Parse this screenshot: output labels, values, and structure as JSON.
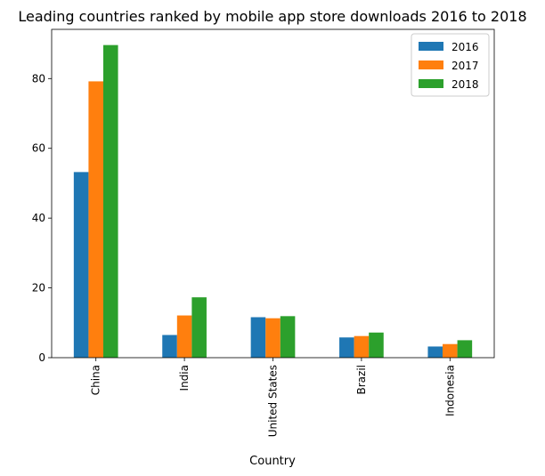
{
  "chart_data": {
    "type": "bar",
    "title": "Leading countries ranked by mobile app store downloads 2016 to 2018",
    "xlabel": "Country",
    "ylabel": "",
    "categories": [
      "China",
      "India",
      "United States",
      "Brazil",
      "Indonesia"
    ],
    "series": [
      {
        "name": "2016",
        "color": "#1f77b4",
        "values": [
          53.2,
          6.5,
          11.6,
          5.8,
          3.2
        ]
      },
      {
        "name": "2017",
        "color": "#ff7f0e",
        "values": [
          79.2,
          12.1,
          11.3,
          6.2,
          3.9
        ]
      },
      {
        "name": "2018",
        "color": "#2ca02c",
        "values": [
          89.6,
          17.3,
          11.9,
          7.2,
          5.0
        ]
      }
    ],
    "ylim": [
      0,
      94.1
    ],
    "yticks": [
      0,
      20,
      40,
      60,
      80
    ],
    "legend": "top-right",
    "grid": false
  }
}
